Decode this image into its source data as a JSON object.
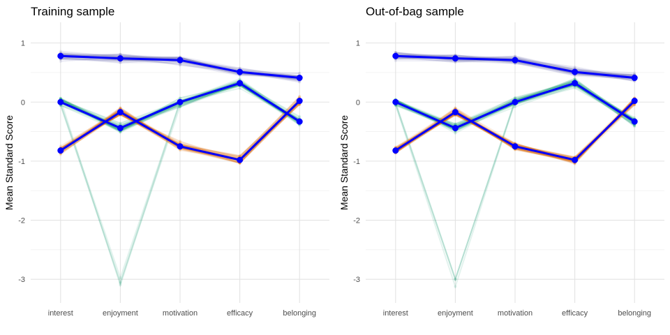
{
  "chart_data": [
    {
      "type": "line",
      "title": "Training sample",
      "xlabel": "",
      "ylabel": "Mean Standard Score",
      "categories": [
        "interest",
        "enjoyment",
        "motivation",
        "efficacy",
        "belonging"
      ],
      "ylim": [
        -3.4,
        1.35
      ],
      "yticks": [
        1,
        0,
        -1,
        -2,
        -3
      ],
      "ytick_labels": [
        "1",
        "0",
        "-1",
        "-2",
        "-3"
      ],
      "grid": true,
      "legend": "none",
      "series": [
        {
          "color": "#0000ff",
          "values": [
            0.78,
            0.74,
            0.71,
            0.51,
            0.41
          ]
        },
        {
          "color": "#0000ff",
          "values": [
            0.0,
            -0.44,
            0.0,
            0.32,
            -0.33
          ]
        },
        {
          "color": "#0000ff",
          "values": [
            -0.82,
            -0.17,
            -0.75,
            -0.98,
            0.02
          ]
        }
      ],
      "replicate_groups": [
        {
          "color": "#7570b3",
          "values": [
            0.78,
            0.74,
            0.71,
            0.51,
            0.41
          ]
        },
        {
          "color": "#1b9e77",
          "values": [
            0.0,
            -0.44,
            0.0,
            0.32,
            -0.33
          ]
        },
        {
          "color": "#d95f02",
          "values": [
            -0.82,
            -0.17,
            -0.75,
            -0.98,
            0.02
          ]
        }
      ]
    },
    {
      "type": "line",
      "title": "Out-of-bag sample",
      "xlabel": "",
      "ylabel": "Mean Standard Score",
      "categories": [
        "interest",
        "enjoyment",
        "motivation",
        "efficacy",
        "belonging"
      ],
      "ylim": [
        -3.4,
        1.35
      ],
      "yticks": [
        1,
        0,
        -1,
        -2,
        -3
      ],
      "ytick_labels": [
        "1",
        "0",
        "-1",
        "-2",
        "-3"
      ],
      "grid": true,
      "legend": "none",
      "series": [
        {
          "color": "#0000ff",
          "values": [
            0.78,
            0.74,
            0.71,
            0.51,
            0.41
          ]
        },
        {
          "color": "#0000ff",
          "values": [
            0.0,
            -0.44,
            0.0,
            0.32,
            -0.33
          ]
        },
        {
          "color": "#0000ff",
          "values": [
            -0.82,
            -0.17,
            -0.75,
            -0.98,
            0.02
          ]
        }
      ],
      "replicate_groups": [
        {
          "color": "#7570b3",
          "values": [
            0.78,
            0.74,
            0.71,
            0.51,
            0.41
          ]
        },
        {
          "color": "#1b9e77",
          "values": [
            0.0,
            -0.44,
            0.0,
            0.32,
            -0.33
          ]
        },
        {
          "color": "#d95f02",
          "values": [
            -0.82,
            -0.17,
            -0.75,
            -0.98,
            0.02
          ]
        }
      ]
    }
  ]
}
